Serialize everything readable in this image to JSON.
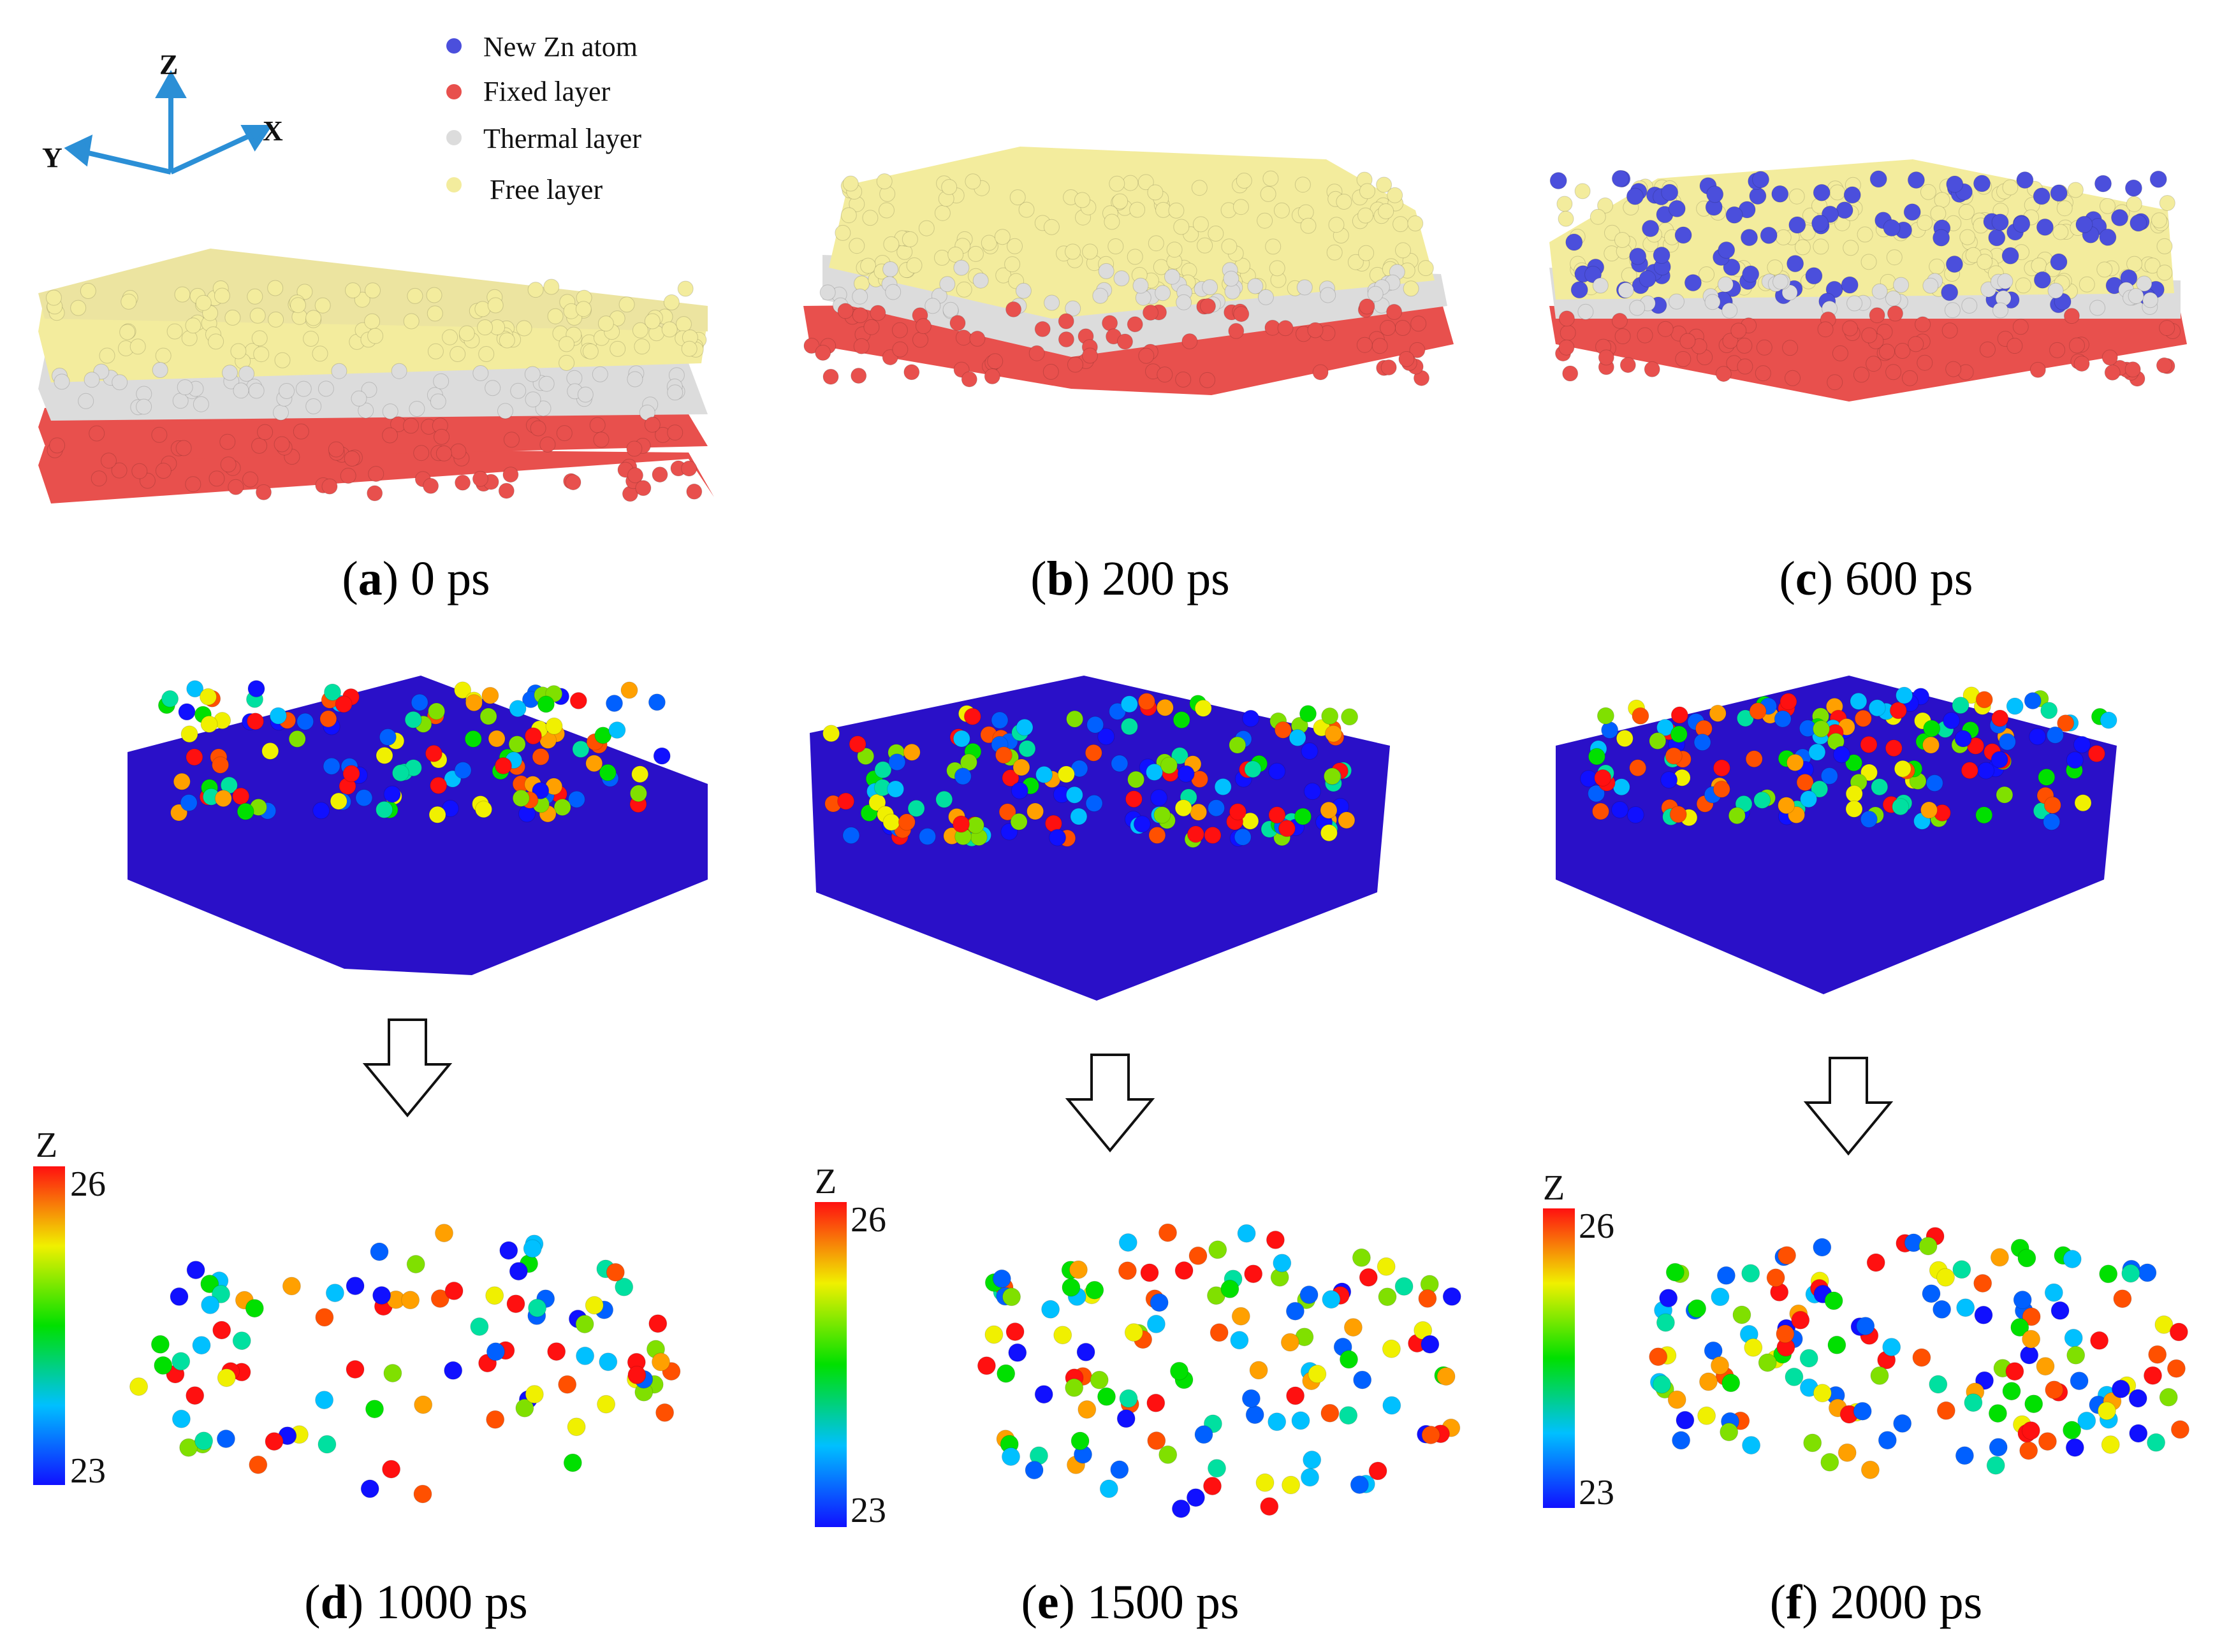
{
  "axes": {
    "z": "Z",
    "y": "Y",
    "x": "X"
  },
  "legend": [
    {
      "label": "New Zn atom",
      "color": "#4b4fdc"
    },
    {
      "label": "Fixed layer",
      "color": "#e8504d"
    },
    {
      "label": "Thermal layer",
      "color": "#dcdcdc"
    },
    {
      "label": "Free layer",
      "color": "#f3ec9d"
    }
  ],
  "colorbar": {
    "title": "Z",
    "max": "26",
    "min": "23"
  },
  "panels": [
    {
      "letter": "a",
      "time": " 0 ps"
    },
    {
      "letter": "b",
      "time": " 200 ps"
    },
    {
      "letter": "c",
      "time": " 600 ps"
    },
    {
      "letter": "d",
      "time": " 1000 ps"
    },
    {
      "letter": "e",
      "time": " 1500 ps"
    },
    {
      "letter": "f",
      "time": " 2000 ps"
    }
  ],
  "colors": {
    "fixed": "#e8504d",
    "thermal": "#dcdcdc",
    "free": "#f3ec9d",
    "newzn": "#4b4fdc",
    "bulk": "#2a10c8",
    "axis": "#2b8fd6"
  }
}
